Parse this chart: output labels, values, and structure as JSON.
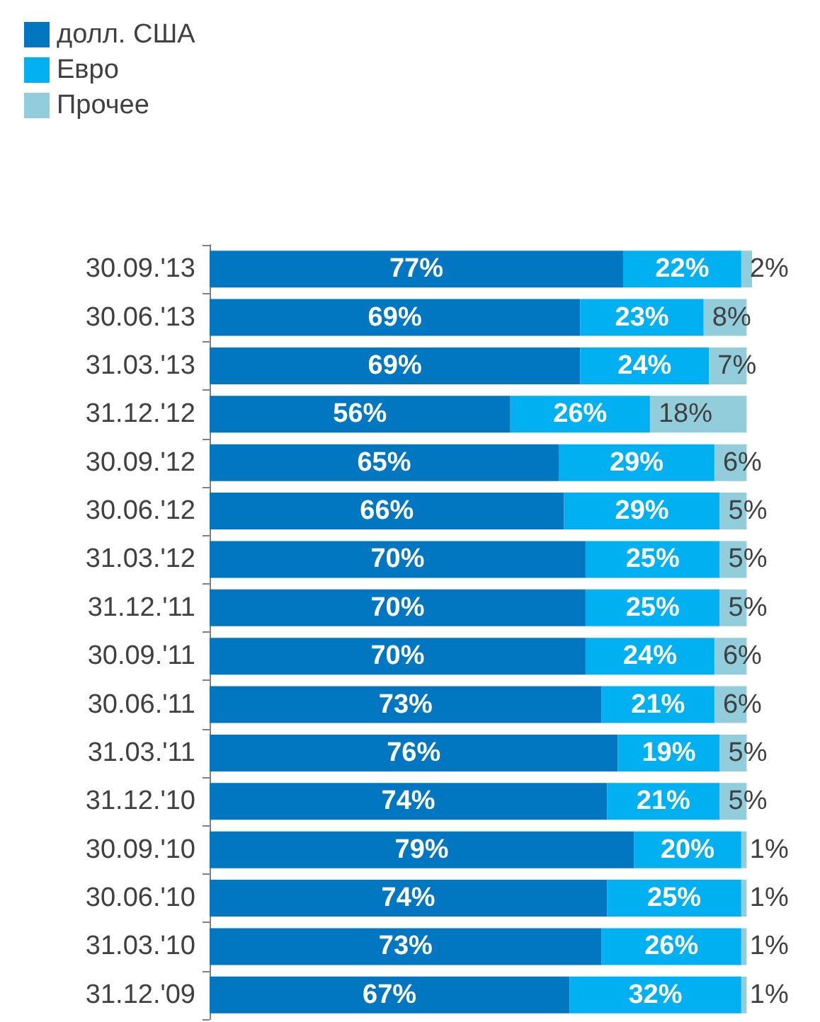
{
  "chart_data": {
    "type": "bar",
    "orientation": "horizontal",
    "stacked": true,
    "legend": "top left",
    "tick_labels": "y",
    "categories": [
      "30.09.'13",
      "30.06.'13",
      "31.03.'13",
      "31.12.'12",
      "30.09.'12",
      "30.06.'12",
      "31.03.'12",
      "31.12.'11",
      "30.09.'11",
      "30.06.'11",
      "31.03.'11",
      "31.12.'10",
      "30.09.'10",
      "30.06.'10",
      "31.03.'10",
      "31.12.'09"
    ],
    "series": [
      {
        "name": "долл. США",
        "color": "#0077c0",
        "values": [
          77,
          69,
          69,
          56,
          65,
          66,
          70,
          70,
          70,
          73,
          76,
          74,
          79,
          74,
          73,
          67
        ],
        "value_labels": [
          "77%",
          "69%",
          "69%",
          "56%",
          "65%",
          "66%",
          "70%",
          "70%",
          "70%",
          "73%",
          "76%",
          "74%",
          "79%",
          "74%",
          "73%",
          "67%"
        ]
      },
      {
        "name": "Евро",
        "color": "#00b0f0",
        "values": [
          22,
          23,
          24,
          26,
          29,
          29,
          25,
          25,
          24,
          21,
          19,
          21,
          20,
          25,
          26,
          32
        ],
        "value_labels": [
          "22%",
          "23%",
          "24%",
          "26%",
          "29%",
          "29%",
          "25%",
          "25%",
          "24%",
          "21%",
          "19%",
          "21%",
          "20%",
          "25%",
          "26%",
          "32%"
        ]
      },
      {
        "name": "Прочее",
        "color": "#92cddc",
        "values": [
          2,
          8,
          7,
          18,
          6,
          5,
          5,
          5,
          6,
          6,
          5,
          5,
          1,
          1,
          1,
          1
        ],
        "value_labels": [
          "2%",
          "8%",
          "7%",
          "18%",
          "6%",
          "5%",
          "5%",
          "5%",
          "6%",
          "6%",
          "5%",
          "5%",
          "1%",
          "1%",
          "1%",
          "1%"
        ]
      }
    ]
  }
}
